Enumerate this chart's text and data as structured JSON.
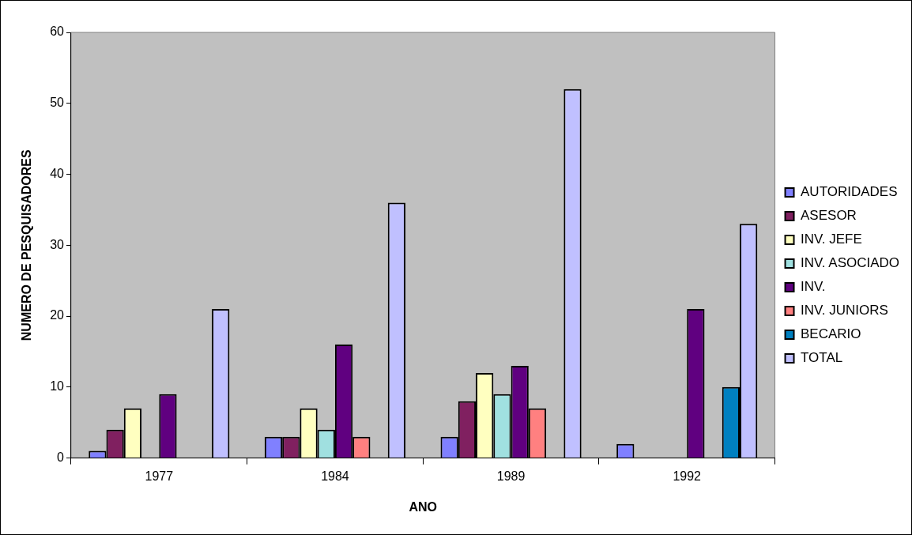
{
  "chart_data": {
    "type": "bar",
    "xlabel": "ANO",
    "ylabel": "NUMERO DE PESQUISADORES",
    "categories": [
      "1977",
      "1984",
      "1989",
      "1992"
    ],
    "series": [
      {
        "name": "AUTORIDADES",
        "color": "#8080ff",
        "values": [
          1,
          3,
          3,
          2
        ]
      },
      {
        "name": "ASESOR",
        "color": "#802060",
        "values": [
          4,
          3,
          8,
          null
        ]
      },
      {
        "name": "INV. JEFE",
        "color": "#ffffc0",
        "values": [
          7,
          7,
          12,
          null
        ]
      },
      {
        "name": "INV. ASOCIADO",
        "color": "#a0e0e0",
        "values": [
          null,
          4,
          9,
          null
        ]
      },
      {
        "name": "INV.",
        "color": "#600080",
        "values": [
          9,
          16,
          13,
          21
        ]
      },
      {
        "name": "INV. JUNIORS",
        "color": "#ff8080",
        "values": [
          null,
          3,
          7,
          null
        ]
      },
      {
        "name": "BECARIO",
        "color": "#0080c0",
        "values": [
          null,
          null,
          null,
          10
        ]
      },
      {
        "name": "TOTAL",
        "color": "#c0c0ff",
        "values": [
          21,
          36,
          52,
          33
        ]
      }
    ],
    "ylim": [
      0,
      60
    ],
    "yticks": [
      0,
      10,
      20,
      30,
      40,
      50,
      60
    ],
    "grid": false,
    "legend": "right"
  }
}
